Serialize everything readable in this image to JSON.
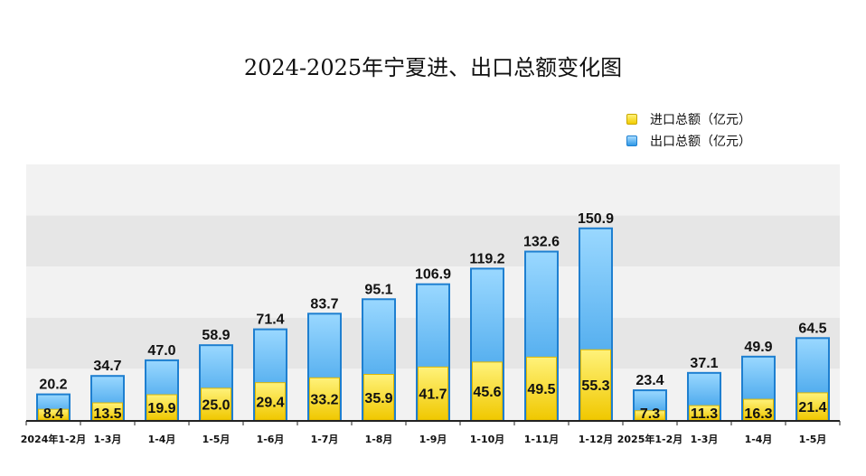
{
  "chart_data": {
    "type": "bar",
    "title": "2024-2025年宁夏进、出口总额变化图",
    "categories": [
      "2024年1-2月",
      "1-3月",
      "1-4月",
      "1-5月",
      "1-6月",
      "1-7月",
      "1-8月",
      "1-9月",
      "1-10月",
      "1-11月",
      "1-12月",
      "2025年1-2月",
      "1-3月",
      "1-4月",
      "1-5月"
    ],
    "series": [
      {
        "name": "出口总额（亿元）",
        "color": "#3fa7ec",
        "values": [
          20.2,
          34.7,
          47.0,
          58.9,
          71.4,
          83.7,
          95.1,
          106.9,
          119.2,
          132.6,
          150.9,
          23.4,
          37.1,
          49.9,
          64.5
        ]
      },
      {
        "name": "进口总额（亿元）",
        "color": "#f5d20a",
        "values": [
          8.4,
          13.5,
          19.9,
          25.0,
          29.4,
          33.2,
          35.9,
          41.7,
          45.6,
          49.5,
          55.3,
          7.3,
          11.3,
          16.3,
          21.4
        ]
      }
    ],
    "ylim": [
      0,
      160
    ],
    "legend": "top-right",
    "grid": "alternating horizontal bands",
    "xlabel": "",
    "ylabel": ""
  }
}
